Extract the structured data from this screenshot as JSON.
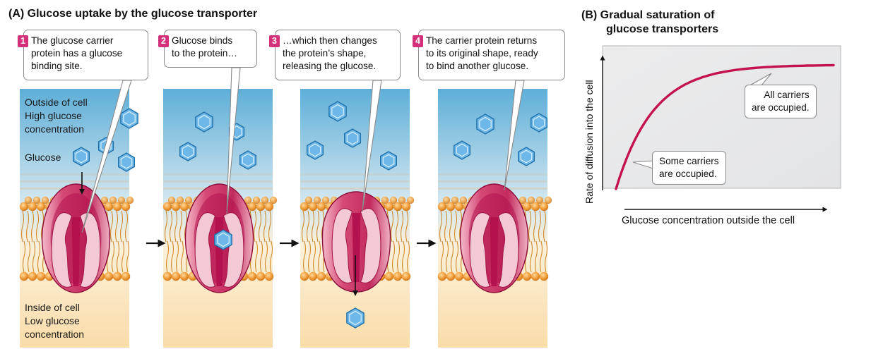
{
  "panel_a": {
    "title": "(A)  Glucose uptake by the glucose transporter",
    "steps": [
      {
        "num": "1",
        "lines": [
          "The glucose carrier",
          "protein has a glucose",
          "binding site."
        ]
      },
      {
        "num": "2",
        "lines": [
          "Glucose binds",
          "to the protein…"
        ]
      },
      {
        "num": "3",
        "lines": [
          "…which then changes",
          "the protein’s shape,",
          "releasing the glucose."
        ]
      },
      {
        "num": "4",
        "lines": [
          "The carrier protein returns",
          "to its original shape, ready",
          "to bind another glucose."
        ]
      }
    ],
    "outside_label": [
      "Outside of cell",
      "High glucose",
      "concentration"
    ],
    "glucose_label": "Glucose",
    "inside_label": [
      "Inside of cell",
      "Low glucose",
      "concentration"
    ]
  },
  "panel_b": {
    "title_lines": [
      "(B)  Gradual saturation of",
      "glucose transporters"
    ],
    "ylabel": "Rate of diffusion into the cell",
    "xlabel": "Glucose concentration outside the cell",
    "label_high": [
      "All carriers",
      "are occupied."
    ],
    "label_low": [
      "Some carriers",
      "are occupied."
    ]
  },
  "colors": {
    "extracellular_top": "#6db6dc",
    "cytoplasm": "#fbe3b4",
    "protein": "#b3124e",
    "protein_pale": "#f3c9d5",
    "glucose": "#6db8e8",
    "lipid_head": "#eb9a3a",
    "step_badge": "#d4317a",
    "curve": "#c4124e",
    "graph_bg": "#e8e9ea"
  }
}
